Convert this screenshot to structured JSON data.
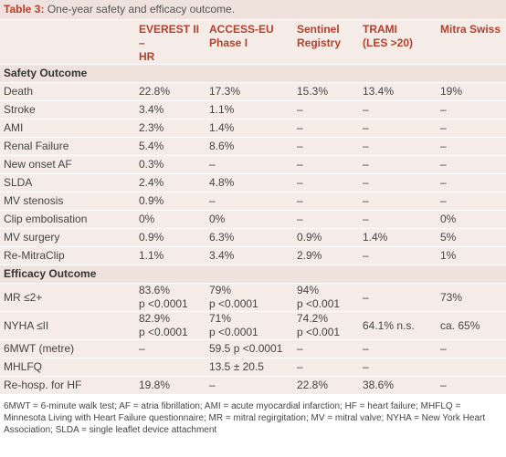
{
  "title": {
    "label": "Table 3:",
    "text": "One-year safety and efficacy outcome."
  },
  "table": {
    "header": [
      [
        "EVEREST II –",
        "HR"
      ],
      [
        "ACCESS-EU",
        "Phase I"
      ],
      [
        "Sentinel",
        "Registry"
      ],
      [
        "TRAMI",
        "(LES >20)"
      ],
      [
        "Mitra Swiss"
      ]
    ],
    "sections": [
      {
        "title": "Safety Outcome",
        "rows": [
          {
            "label": "Death",
            "cells": [
              [
                "22.8%"
              ],
              [
                "17.3%"
              ],
              [
                "15.3%"
              ],
              [
                "13.4%"
              ],
              [
                "19%"
              ]
            ]
          },
          {
            "label": "Stroke",
            "cells": [
              [
                "3.4%"
              ],
              [
                "1.1%"
              ],
              [
                "–"
              ],
              [
                "–"
              ],
              [
                "–"
              ]
            ]
          },
          {
            "label": "AMI",
            "cells": [
              [
                "2.3%"
              ],
              [
                "1.4%"
              ],
              [
                "–"
              ],
              [
                "–"
              ],
              [
                "–"
              ]
            ]
          },
          {
            "label": "Renal Failure",
            "cells": [
              [
                "5.4%"
              ],
              [
                "8.6%"
              ],
              [
                "–"
              ],
              [
                "–"
              ],
              [
                "–"
              ]
            ]
          },
          {
            "label": "New onset AF",
            "cells": [
              [
                "0.3%"
              ],
              [
                "–"
              ],
              [
                "–"
              ],
              [
                "–"
              ],
              [
                "–"
              ]
            ]
          },
          {
            "label": "SLDA",
            "cells": [
              [
                "2.4%"
              ],
              [
                "4.8%"
              ],
              [
                "–"
              ],
              [
                "–"
              ],
              [
                "–"
              ]
            ]
          },
          {
            "label": "MV stenosis",
            "cells": [
              [
                "0.9%"
              ],
              [
                "–"
              ],
              [
                "–"
              ],
              [
                "–"
              ],
              [
                "–"
              ]
            ]
          },
          {
            "label": "Clip embolisation",
            "cells": [
              [
                "0%"
              ],
              [
                "0%"
              ],
              [
                "–"
              ],
              [
                "–"
              ],
              [
                "0%"
              ]
            ]
          },
          {
            "label": "MV surgery",
            "cells": [
              [
                "0.9%"
              ],
              [
                "6.3%"
              ],
              [
                "0.9%"
              ],
              [
                "1.4%"
              ],
              [
                "5%"
              ]
            ]
          },
          {
            "label": "Re-MitraClip",
            "cells": [
              [
                "1.1%"
              ],
              [
                "3.4%"
              ],
              [
                "2.9%"
              ],
              [
                "–"
              ],
              [
                "1%"
              ]
            ]
          }
        ]
      },
      {
        "title": "Efficacy Outcome",
        "rows": [
          {
            "label": "MR ≤2+",
            "cells": [
              [
                "83.6%",
                "p <0.0001"
              ],
              [
                "79%",
                "p <0.0001"
              ],
              [
                "94%",
                "p <0.001"
              ],
              [
                "–"
              ],
              [
                "73%"
              ]
            ]
          },
          {
            "label": "NYHA ≤II",
            "cells": [
              [
                "82.9%",
                "p <0.0001"
              ],
              [
                "71%",
                "p <0.0001"
              ],
              [
                "74.2%",
                "p <0.001"
              ],
              [
                "64.1% n.s."
              ],
              [
                "ca. 65%"
              ]
            ]
          },
          {
            "label": "6MWT (metre)",
            "cells": [
              [
                "–"
              ],
              [
                "59.5 p <0.0001"
              ],
              [
                "–"
              ],
              [
                "–"
              ],
              [
                "–"
              ]
            ]
          },
          {
            "label": "MHLFQ",
            "cells": [
              null,
              [
                "13.5 ± 20.5"
              ],
              [
                "–"
              ],
              [
                "–"
              ],
              null
            ]
          },
          {
            "label": "Re-hosp. for HF",
            "cells": [
              [
                "19.8%"
              ],
              [
                "–"
              ],
              [
                "22.8%"
              ],
              [
                "38.6%"
              ],
              [
                "–"
              ]
            ]
          }
        ]
      }
    ]
  },
  "footnote": "6MWT = 6-minute walk test; AF = atria fibrillation; AMI = acute myocardial infarction; HF = heart failure; MHFLQ = Minnesota Living with Heart Failure questionnaire; MR = mitral regirgitation; MV = mitral valve; NYHA = New York Heart Association; SLDA = single leaflet device attachment"
}
